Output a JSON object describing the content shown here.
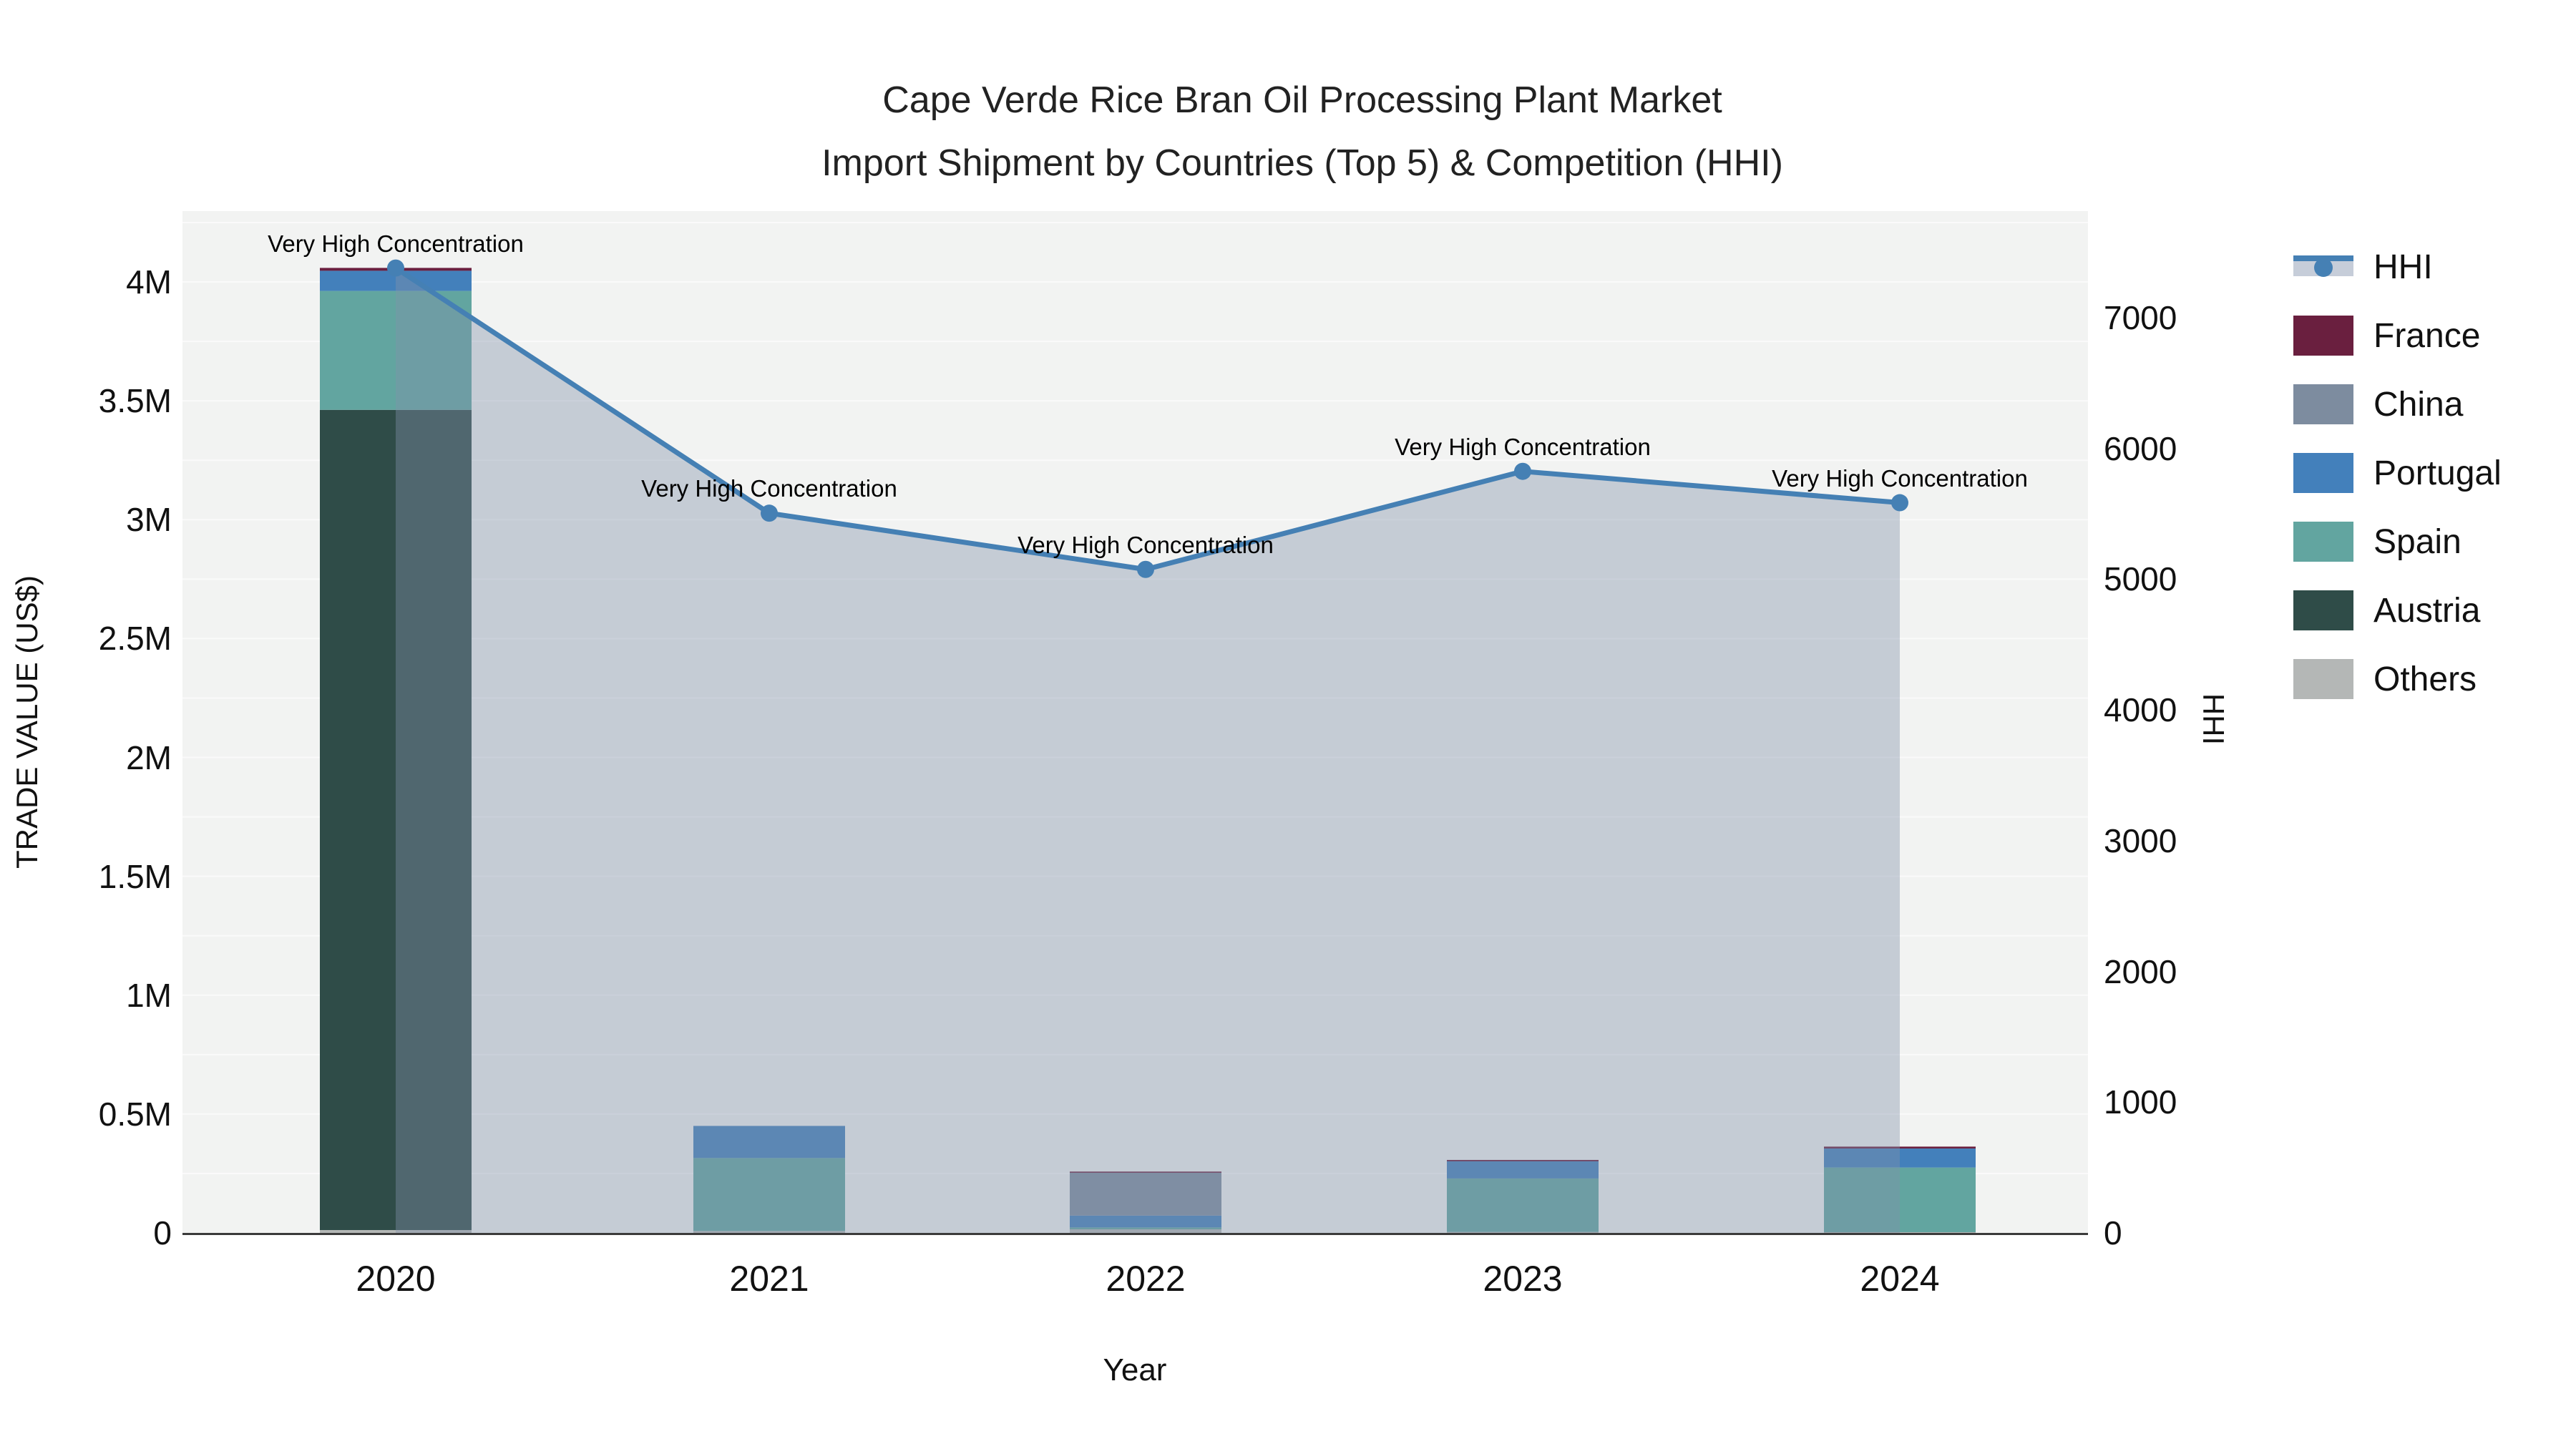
{
  "title": {
    "line1": "Cape Verde Rice Bran Oil Processing Plant Market",
    "line2": "Import Shipment by Countries (Top 5) & Competition (HHI)"
  },
  "axes": {
    "left": {
      "title": "TRADE VALUE (US$)",
      "ticks": [
        {
          "value": 0,
          "label": "0"
        },
        {
          "value": 0.5,
          "label": "0.5M"
        },
        {
          "value": 1,
          "label": "1M"
        },
        {
          "value": 1.5,
          "label": "1.5M"
        },
        {
          "value": 2,
          "label": "2M"
        },
        {
          "value": 2.5,
          "label": "2.5M"
        },
        {
          "value": 3,
          "label": "3M"
        },
        {
          "value": 3.5,
          "label": "3.5M"
        },
        {
          "value": 4,
          "label": "4M"
        }
      ]
    },
    "right": {
      "title": "HHI",
      "ticks": [
        {
          "value": 0,
          "label": "0"
        },
        {
          "value": 1000,
          "label": "1000"
        },
        {
          "value": 2000,
          "label": "2000"
        },
        {
          "value": 3000,
          "label": "3000"
        },
        {
          "value": 4000,
          "label": "4000"
        },
        {
          "value": 5000,
          "label": "5000"
        },
        {
          "value": 6000,
          "label": "6000"
        },
        {
          "value": 7000,
          "label": "7000"
        }
      ]
    },
    "x": {
      "title": "Year",
      "ticks": [
        "2020",
        "2021",
        "2022",
        "2023",
        "2024"
      ]
    }
  },
  "legend": {
    "items": [
      {
        "label": "HHI",
        "type": "line",
        "color": "#4580b4",
        "band": "#c6cdd9"
      },
      {
        "label": "France",
        "type": "box",
        "color": "#6a1f3f"
      },
      {
        "label": "China",
        "type": "box",
        "color": "#7d8c9f"
      },
      {
        "label": "Portugal",
        "type": "box",
        "color": "#4380bb"
      },
      {
        "label": "Spain",
        "type": "box",
        "color": "#62a5a0"
      },
      {
        "label": "Austria",
        "type": "box",
        "color": "#2f4c48"
      },
      {
        "label": "Others",
        "type": "box",
        "color": "#b4b7b6"
      }
    ]
  },
  "chart_data": {
    "type": "bar+line",
    "title": "Cape Verde Rice Bran Oil Processing Plant Market — Import Shipment by Countries (Top 5) & Competition (HHI)",
    "categories": [
      "2020",
      "2021",
      "2022",
      "2023",
      "2024"
    ],
    "bar_value_unit": "million US$",
    "stack_order_bottom_to_top": [
      "Others",
      "Austria",
      "Spain",
      "Portugal",
      "China",
      "France"
    ],
    "series": [
      {
        "name": "Others",
        "color": "#b4b7b6",
        "values": [
          0.012,
          0.008,
          0.015,
          0.004,
          0.003
        ]
      },
      {
        "name": "Austria",
        "color": "#2f4c48",
        "values": [
          3.45,
          0,
          0,
          0,
          0
        ]
      },
      {
        "name": "Spain",
        "color": "#62a5a0",
        "values": [
          0.5,
          0.307,
          0.008,
          0.225,
          0.272
        ]
      },
      {
        "name": "Portugal",
        "color": "#4380bb",
        "values": [
          0.085,
          0.135,
          0.05,
          0.072,
          0.08
        ]
      },
      {
        "name": "China",
        "color": "#7d8c9f",
        "values": [
          0,
          0,
          0.18,
          0,
          0
        ]
      },
      {
        "name": "France",
        "color": "#6a1f3f",
        "values": [
          0.012,
          0,
          0.005,
          0.006,
          0.008
        ]
      }
    ],
    "line_series": {
      "name": "HHI",
      "color": "#4580b4",
      "area_fill": "rgba(131,144,170,0.40)",
      "values": [
        7380,
        5505,
        5075,
        5825,
        5585
      ]
    },
    "annotations": [
      "Very High Concentration",
      "Very High Concentration",
      "Very High Concentration",
      "Very High Concentration",
      "Very High Concentration"
    ],
    "xlabel": "Year",
    "ylabel_left": "TRADE VALUE (US$)",
    "ylabel_right": "HHI",
    "left_axis_range_millions": [
      0,
      4.3
    ],
    "right_axis_range": [
      0,
      7815
    ],
    "grid": true,
    "legend_position": "right",
    "plot_background": "#f2f3f2",
    "gridline_color": "#fbfbfb",
    "axis_line_color": "#3b3b3b"
  }
}
